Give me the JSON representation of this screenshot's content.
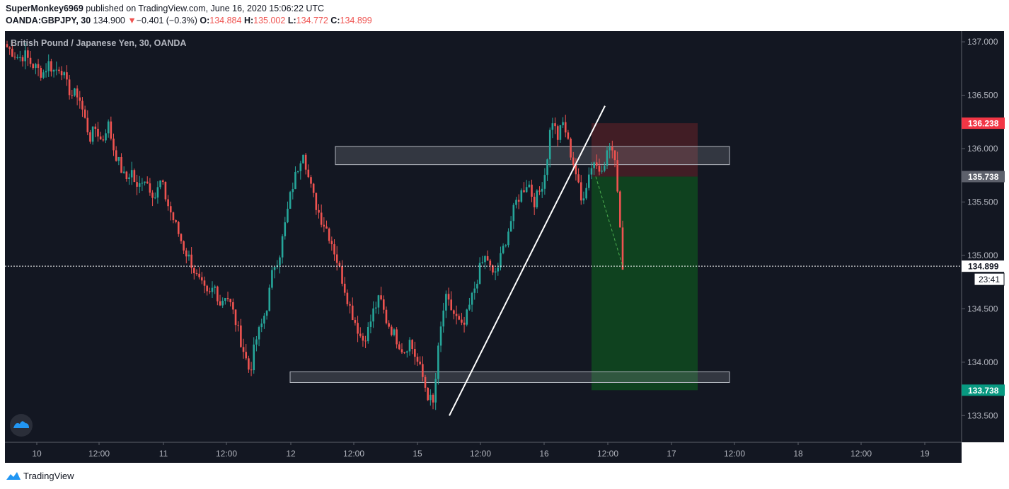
{
  "header": {
    "user": "SuperMonkey6969",
    "published_text": "published on TradingView.com, June 16, 2020 15:06:22 UTC",
    "symbol": "OANDA:GBPJPY, 30",
    "last": "134.900",
    "change_arrow": "▼",
    "change": "−0.401 (−0.3%)",
    "o_label": "O:",
    "o_value": "134.884",
    "h_label": "H:",
    "h_value": "135.002",
    "l_label": "L:",
    "l_value": "134.772",
    "c_label": "C:",
    "c_value": "134.899"
  },
  "chart": {
    "title": "British Pound / Japanese Yen, 30, OANDA",
    "countdown": "23:41",
    "logo_icon": "tradingview-cloud-icon"
  },
  "footer": {
    "brand": "TradingView",
    "logo_icon": "tradingview-logo-icon"
  },
  "colors": {
    "background": "#131722",
    "up": "#26a69a",
    "down": "#ef5350",
    "stop_zone": "#4a1f26",
    "target_zone": "#0f4a1f",
    "grid_text": "#b2b5be"
  },
  "chart_data": {
    "type": "candlestick",
    "title": "British Pound / Japanese Yen, 30, OANDA",
    "ylim": [
      133.25,
      137.1
    ],
    "y_ticks": [
      "133.500",
      "134.000",
      "134.500",
      "135.000",
      "135.500",
      "136.000",
      "136.500",
      "137.000"
    ],
    "x_ticks": [
      "10",
      "12:00",
      "11",
      "12:00",
      "12",
      "12:00",
      "15",
      "12:00",
      "16",
      "12:00",
      "17",
      "12:00",
      "18",
      "12:00",
      "19"
    ],
    "price_labels": [
      {
        "label": "136.238",
        "value": 136.238,
        "color": "#f23645"
      },
      {
        "label": "135.738",
        "value": 135.738,
        "color": "#5d606b"
      },
      {
        "label": "134.899",
        "value": 134.899,
        "color": "#ffffff"
      },
      {
        "label": "133.738",
        "value": 133.738,
        "color": "#089981"
      }
    ],
    "trend_line": {
      "from": {
        "date": "2020-06-15 07:00",
        "price": 133.5
      },
      "to": {
        "date": "2020-06-16 14:30",
        "price": 136.4
      }
    },
    "zones": [
      {
        "name": "resistance",
        "price_low": 135.85,
        "price_high": 136.02
      },
      {
        "name": "support",
        "price_low": 133.81,
        "price_high": 133.91
      }
    ],
    "short_position": {
      "entry": 135.738,
      "stop": 136.238,
      "target": 133.738
    },
    "close_path": [
      136.95,
      136.9,
      136.85,
      136.88,
      136.8,
      136.75,
      136.7,
      136.8,
      136.72,
      136.78,
      136.6,
      136.5,
      136.52,
      136.3,
      136.1,
      136.2,
      136.05,
      136.25,
      136.0,
      135.85,
      135.7,
      135.8,
      135.6,
      135.75,
      135.65,
      135.55,
      135.7,
      135.5,
      135.35,
      135.2,
      135.05,
      134.95,
      134.8,
      134.7,
      134.6,
      134.72,
      134.55,
      134.65,
      134.5,
      134.3,
      134.1,
      133.9,
      134.2,
      134.35,
      134.55,
      134.9,
      135.0,
      135.3,
      135.6,
      135.8,
      136.0,
      135.7,
      135.5,
      135.35,
      135.25,
      135.1,
      134.9,
      134.7,
      134.5,
      134.35,
      134.2,
      134.3,
      134.5,
      134.6,
      134.4,
      134.3,
      134.2,
      134.1,
      134.2,
      134.05,
      133.9,
      133.7,
      133.6,
      134.2,
      134.6,
      134.5,
      134.4,
      134.3,
      134.5,
      134.7,
      134.9,
      135.0,
      134.8,
      134.9,
      135.1,
      135.3,
      135.5,
      135.6,
      135.7,
      135.5,
      135.6,
      135.8,
      136.3,
      136.1,
      136.25,
      136.0,
      135.8,
      135.5,
      135.7,
      135.9,
      135.8,
      135.9,
      136.05,
      135.75,
      134.9
    ]
  }
}
